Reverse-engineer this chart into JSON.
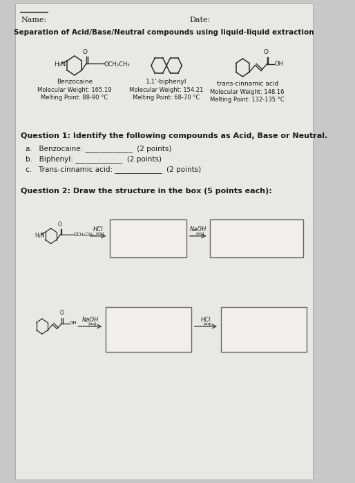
{
  "title": "Separation of Acid/Base/Neutral compounds using liquid-liquid extraction",
  "name_label": "Name:",
  "date_label": "Date:",
  "bg_color": "#c8c8c8",
  "paper_color": "#e8e8e4",
  "compound1_name": "Benzocaine",
  "compound1_mw": "Molecular Weight: 165.19",
  "compound1_mp": "Melting Point: 88-90 °C",
  "compound2_name": "1,1’-biphenyl",
  "compound2_mw": "Molecular Weight: 154.21",
  "compound2_mp": "Melting Point: 68-70 °C",
  "compound3_name": "trans-cinnamic acid",
  "compound3_mw": "Molecular Weight: 148.16",
  "compound3_mp": "Melting Point: 132-135 °C",
  "q1_title": "Question 1: Identify the following compounds as Acid, Base or Neutral.",
  "q1a": "a.   Benzocaine: _____________  (2 points)",
  "q1b": "b.   Biphenyl: _____________  (2 points)",
  "q1c": "c.   Trans-cinnamic acid: _____________  (2 points)",
  "q2_title": "Question 2: Draw the structure in the box (5 points each):",
  "box_color": "#f0efeb",
  "box_edge": "#666666",
  "arrow_color": "#444444",
  "text_color": "#1a1a1a",
  "struct_color": "#2a2a2a"
}
